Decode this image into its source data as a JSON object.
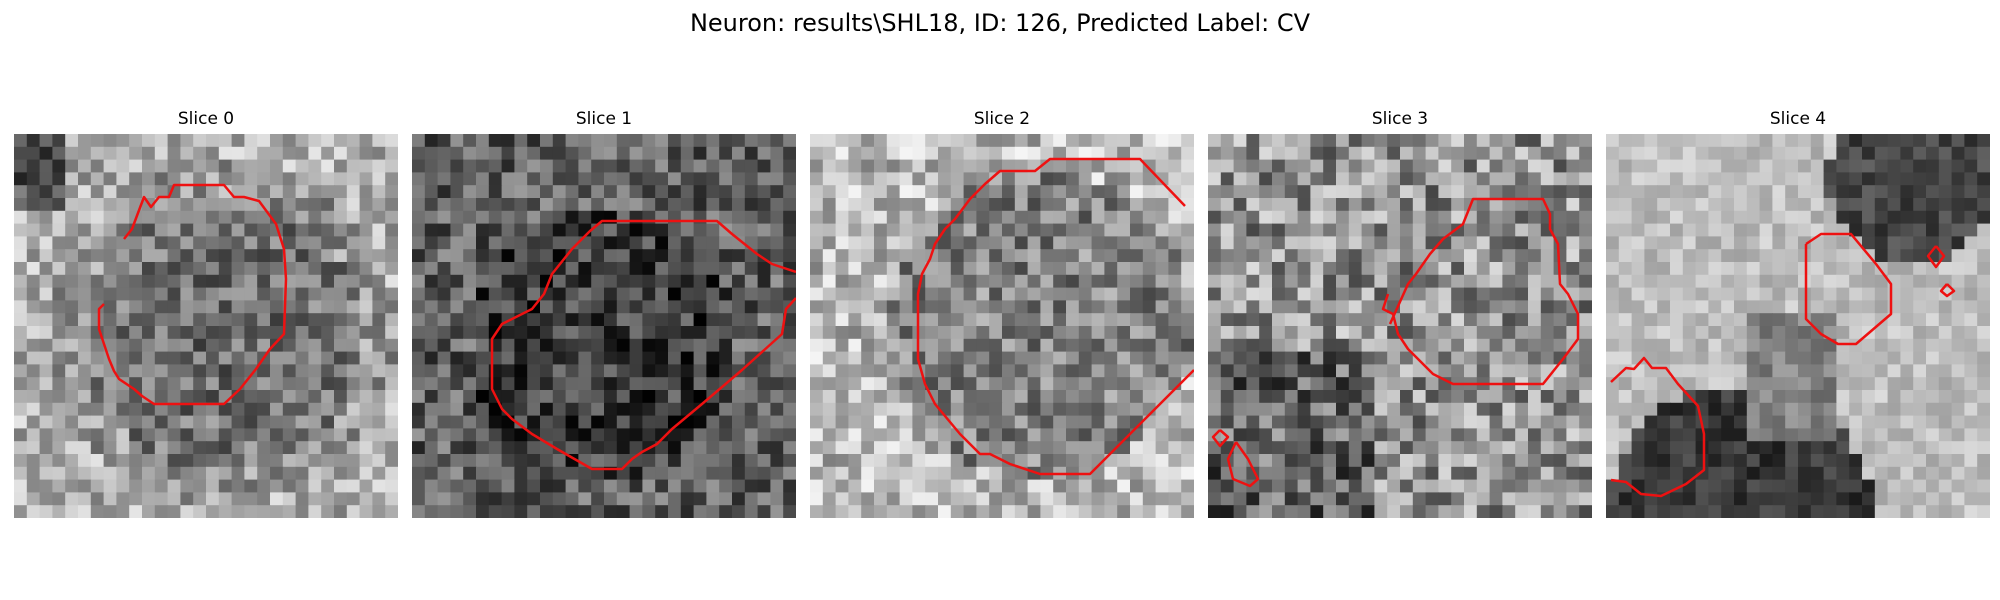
{
  "figure": {
    "title": "Neuron: results\\SHL18, ID: 126, Predicted Label: CV",
    "contour_color": "#ee1111",
    "colormap": "gray",
    "slices": [
      {
        "label": "Slice 0"
      },
      {
        "label": "Slice 1"
      },
      {
        "label": "Slice 2"
      },
      {
        "label": "Slice 3"
      },
      {
        "label": "Slice 4"
      }
    ]
  }
}
